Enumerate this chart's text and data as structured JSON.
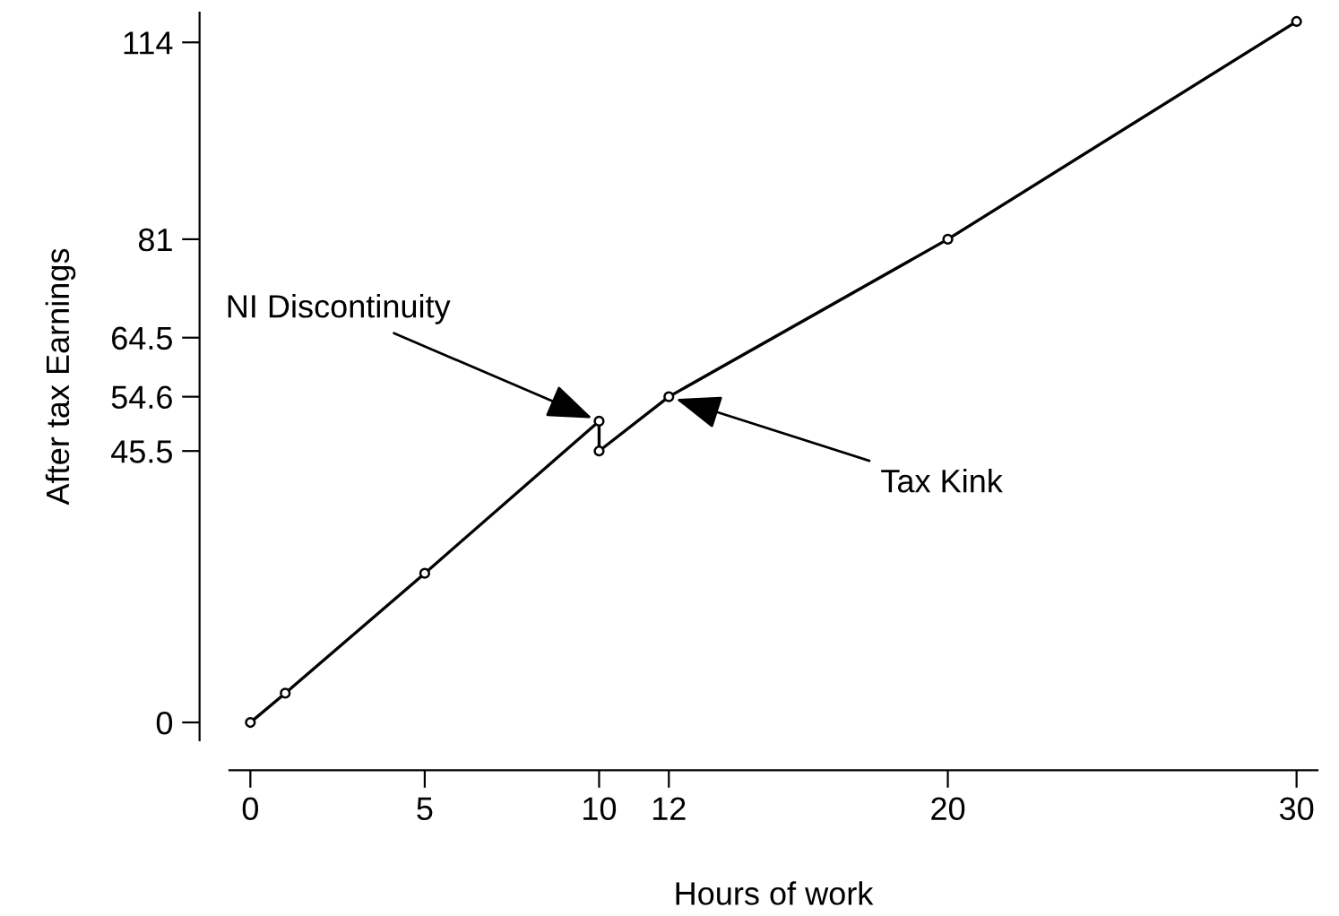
{
  "chart_data": {
    "type": "line",
    "xlabel": "Hours of work",
    "ylabel": "After tax Earnings",
    "series": [
      {
        "color": "#000000",
        "x": [
          0,
          1,
          5,
          10,
          10,
          12,
          20,
          30
        ],
        "values": [
          0,
          4.9,
          25.0,
          50.5,
          45.5,
          54.6,
          81,
          117.5
        ]
      }
    ],
    "xlim": [
      -0.6,
      30.6
    ],
    "ylim": [
      -3,
      119
    ],
    "xticks": [
      0,
      5,
      10,
      12,
      20,
      30
    ],
    "yticks": [
      0,
      45.5,
      54.6,
      64.5,
      81,
      114
    ],
    "marker": "circle",
    "line_style": "solid",
    "grid": false,
    "legend": false,
    "annotations": [
      {
        "text": "NI Discontinuity",
        "x": 10,
        "y": 50.5
      },
      {
        "text": "Tax Kink",
        "x": 12,
        "y": 54.6
      }
    ]
  }
}
